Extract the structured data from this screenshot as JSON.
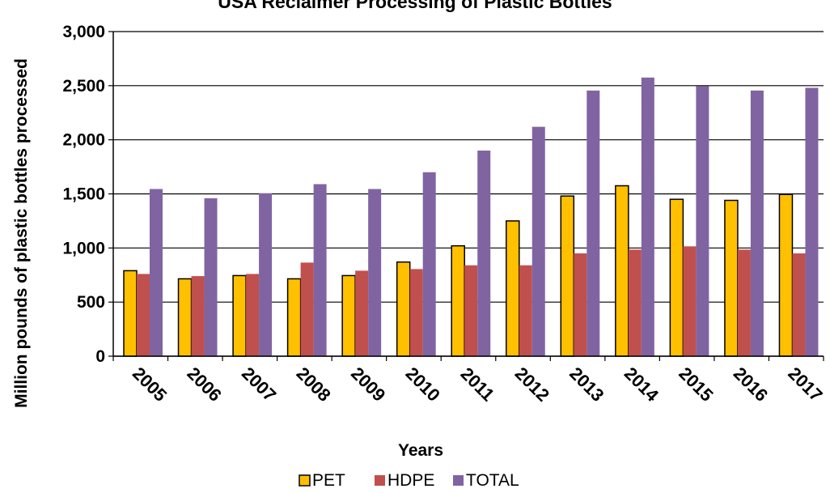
{
  "chart_data": {
    "type": "bar",
    "title": "USA Reclaimer Processing of Plastic Bottles",
    "xlabel": "Years",
    "ylabel": "Million pounds of plastic bottles processed",
    "categories": [
      "2005",
      "2006",
      "2007",
      "2008",
      "2009",
      "2010",
      "2011",
      "2012",
      "2013",
      "2014",
      "2015",
      "2016",
      "2017"
    ],
    "series": [
      {
        "name": "PET",
        "color": "#FFC000",
        "values": [
          790,
          715,
          745,
          715,
          745,
          870,
          1020,
          1250,
          1480,
          1575,
          1450,
          1440,
          1495
        ]
      },
      {
        "name": "HDPE",
        "color": "#C0504D",
        "values": [
          760,
          740,
          760,
          865,
          790,
          805,
          840,
          840,
          950,
          985,
          1015,
          985,
          950
        ]
      },
      {
        "name": "TOTAL",
        "color": "#8064A2",
        "values": [
          1545,
          1460,
          1505,
          1590,
          1545,
          1700,
          1900,
          2120,
          2455,
          2575,
          2495,
          2455,
          2480
        ]
      }
    ],
    "y_ticks": [
      "0",
      "500",
      "1,000",
      "1,500",
      "2,000",
      "2,500",
      "3,000"
    ],
    "ylim": [
      0,
      3000
    ],
    "grid": "y-major",
    "legend_position": "bottom"
  }
}
